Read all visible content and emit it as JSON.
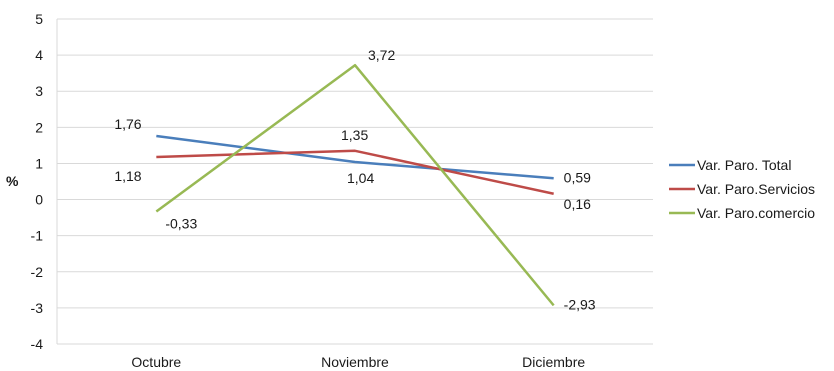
{
  "chart_data": {
    "type": "line",
    "ylabel": "%",
    "xlabel": "",
    "ylim": [
      -4,
      5
    ],
    "yticks": [
      "5",
      "4",
      "3",
      "2",
      "1",
      "0",
      "-1",
      "-2",
      "-3",
      "-4"
    ],
    "categories": [
      "Octubre",
      "Noviembre",
      "Diciembre"
    ],
    "grid": "horizontal",
    "legend_position": "right",
    "series": [
      {
        "name": "Var. Paro. Total",
        "color": "#4a7ebb",
        "values": [
          1.76,
          1.04,
          0.59
        ],
        "labels": [
          "1,76",
          "1,04",
          "0,59"
        ]
      },
      {
        "name": "Var. Paro.Servicios",
        "color": "#be4b48",
        "values": [
          1.18,
          1.35,
          0.16
        ],
        "labels": [
          "1,18",
          "1,35",
          "0,16"
        ]
      },
      {
        "name": "Var. Paro.comercio",
        "color": "#98b954",
        "values": [
          -0.33,
          3.72,
          -2.93
        ],
        "labels": [
          "-0,33",
          "3,72",
          "-2,93"
        ]
      }
    ]
  }
}
